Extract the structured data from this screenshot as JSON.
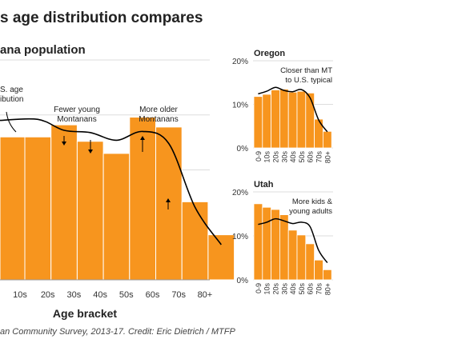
{
  "title": "s age distribution compares",
  "source": "an Community Survey, 2013-17. Credit: Eric Dietrich / MTFP",
  "colors": {
    "bar": "#f7951e",
    "bar_stroke": "#ffffff",
    "line": "#000000",
    "grid": "#dddddd"
  },
  "chart_data": [
    {
      "id": "montana",
      "type": "bar",
      "title": "ana population",
      "xlabel": "Age bracket",
      "categories": [
        "10s",
        "20s",
        "30s",
        "40s",
        "50s",
        "60s",
        "70s",
        "80+"
      ],
      "values": [
        13.0,
        14.1,
        12.6,
        11.5,
        14.8,
        13.9,
        7.1,
        4.1
      ],
      "partial_left_bar": 13.0,
      "us_typical": [
        14.6,
        13.6,
        13.4,
        12.7,
        13.5,
        12.4,
        6.6,
        3.2
      ],
      "ylim": [
        0,
        20
      ],
      "grid": true,
      "annotations": [
        {
          "text": "S. age",
          "text2": "ibution"
        },
        {
          "text": "Fewer young",
          "text2": "Montanans"
        },
        {
          "text": "More older",
          "text2": "Montanans"
        }
      ]
    },
    {
      "id": "oregon",
      "type": "bar",
      "title": "Oregon",
      "categories": [
        "0-9",
        "10s",
        "20s",
        "30s",
        "40s",
        "50s",
        "60s",
        "70s",
        "80+"
      ],
      "values": [
        11.8,
        12.3,
        13.3,
        13.5,
        12.8,
        13.0,
        12.6,
        6.6,
        3.8
      ],
      "us_typical": [
        12.4,
        13.0,
        13.9,
        13.2,
        12.9,
        13.4,
        11.5,
        6.4,
        3.7
      ],
      "ylim": [
        0,
        20
      ],
      "yticks": [
        "0%",
        "10%",
        "20%"
      ],
      "grid": true,
      "annotations": [
        {
          "text": "Closer than MT",
          "text2": "to U.S. typical"
        }
      ]
    },
    {
      "id": "utah",
      "type": "bar",
      "title": "Utah",
      "categories": [
        "0-9",
        "10s",
        "20s",
        "30s",
        "40s",
        "50s",
        "60s",
        "70s",
        "80+"
      ],
      "values": [
        17.3,
        16.5,
        16.0,
        14.8,
        11.3,
        10.2,
        8.2,
        4.5,
        2.3
      ],
      "us_typical": [
        12.6,
        13.1,
        13.9,
        13.4,
        12.8,
        13.1,
        12.1,
        6.7,
        3.9
      ],
      "ylim": [
        0,
        20
      ],
      "yticks": [
        "0%",
        "10%",
        "20%"
      ],
      "grid": true,
      "annotations": [
        {
          "text": "More kids &",
          "text2": "young adults"
        }
      ]
    }
  ]
}
